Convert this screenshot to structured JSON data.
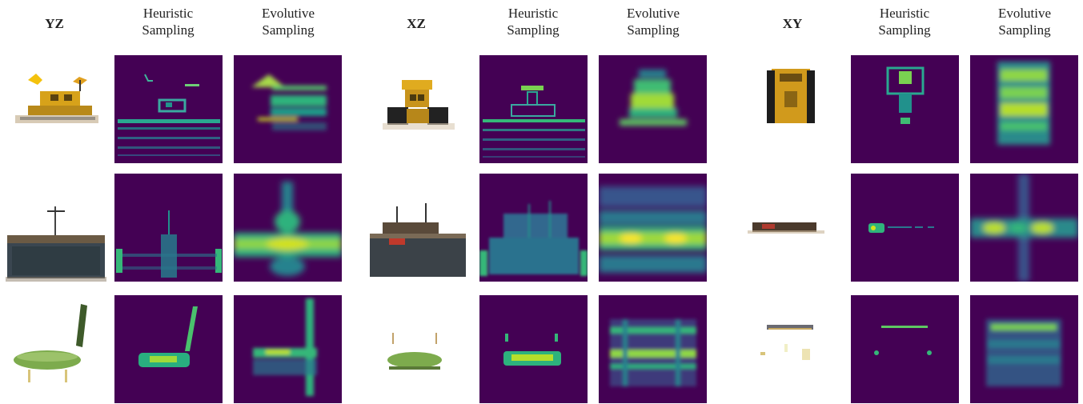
{
  "figure": {
    "groups": [
      {
        "plane": "YZ",
        "col1": "Heuristic\nSampling",
        "col2": "Evolutive\nSampling"
      },
      {
        "plane": "XZ",
        "col1": "Heuristic\nSampling",
        "col2": "Evolutive\nSampling"
      },
      {
        "plane": "XY",
        "col1": "Heuristic\nSampling",
        "col2": "Evolutive\nSampling"
      }
    ],
    "rows": [
      "lego",
      "ship",
      "chair"
    ],
    "colormap": {
      "low": "#440154",
      "mid": "#21918c",
      "high": "#fde725"
    }
  }
}
